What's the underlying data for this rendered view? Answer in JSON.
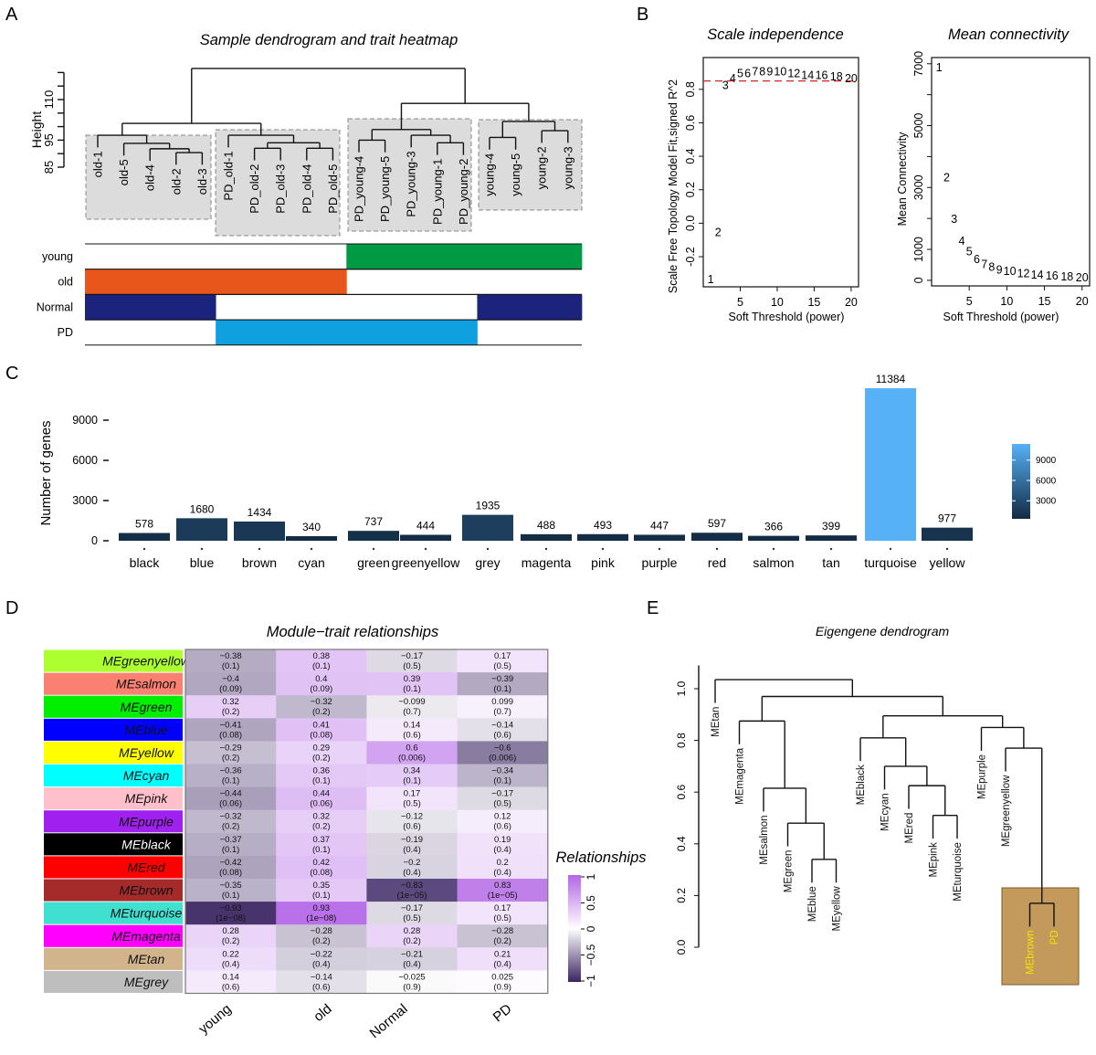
{
  "panel_letters": [
    "A",
    "B",
    "C",
    "D",
    "E"
  ],
  "panel_a": {
    "title": "Sample dendrogram and trait heatmap",
    "ylabel": "Height",
    "yticks": [
      85,
      90,
      95,
      100,
      105,
      110,
      115,
      120
    ],
    "ytick_labels": [
      "85",
      "",
      "95",
      "",
      "",
      "110",
      "",
      ""
    ],
    "tree": {
      "h": 121.5,
      "c": [
        {
          "h": 101.2,
          "c": [
            {
              "h": 96.8,
              "c": [
                "old-1",
                {
                  "h": 93.8,
                  "c": [
                    "old-5",
                    {
                      "h": 91.8,
                      "c": [
                        "old-4",
                        {
                          "h": 90.4,
                          "c": [
                            "old-2",
                            "old-3"
                          ]
                        }
                      ]
                    }
                  ]
                }
              ]
            },
            {
              "h": 96.8,
              "c": [
                "PD_old-1",
                {
                  "h": 94,
                  "c": [
                    {
                      "h": 92,
                      "c": [
                        "PD_old-2",
                        "PD_old-3"
                      ]
                    },
                    {
                      "h": 92,
                      "c": [
                        "PD_old-4",
                        "PD_old-5"
                      ]
                    }
                  ]
                }
              ]
            }
          ]
        },
        {
          "h": 108.6,
          "c": [
            {
              "h": 98.9,
              "c": [
                {
                  "h": 95,
                  "c": [
                    "PD_young-4",
                    "PD_young-5"
                  ]
                },
                {
                  "h": 96.8,
                  "c": [
                    "PD_young-3",
                    {
                      "h": 94,
                      "c": [
                        "PD_young-1",
                        "PD_young-2"
                      ]
                    }
                  ]
                }
              ]
            },
            {
              "h": 101.9,
              "c": [
                {
                  "h": 96,
                  "c": [
                    "young-4",
                    "young-5"
                  ]
                },
                {
                  "h": 98.5,
                  "c": [
                    "young-2",
                    "young-3"
                  ]
                }
              ]
            }
          ]
        }
      ]
    },
    "traits": [
      {
        "label": "young",
        "color": "#009a44",
        "samples": [
          0,
          0,
          0,
          0,
          0,
          0,
          0,
          0,
          0,
          0,
          1,
          1,
          1,
          1,
          1,
          1,
          1,
          1,
          1
        ]
      },
      {
        "label": "old",
        "color": "#e8561c",
        "samples": [
          1,
          1,
          1,
          1,
          1,
          1,
          1,
          1,
          1,
          1,
          0,
          0,
          0,
          0,
          0,
          0,
          0,
          0,
          0
        ]
      },
      {
        "label": "Normal",
        "color": "#1c237c",
        "samples": [
          1,
          1,
          1,
          1,
          1,
          0,
          0,
          0,
          0,
          0,
          0,
          0,
          0,
          0,
          0,
          1,
          1,
          1,
          1
        ]
      },
      {
        "label": "PD",
        "color": "#0fa0e0",
        "samples": [
          0,
          0,
          0,
          0,
          0,
          1,
          1,
          1,
          1,
          1,
          1,
          1,
          1,
          1,
          1,
          0,
          0,
          0,
          0
        ]
      }
    ]
  },
  "chart_data": [
    {
      "type": "scatter",
      "panel": "B-left",
      "title": "Scale independence",
      "xlabel": "Soft Threshold (power)",
      "ylabel": "Scale Free Topology Model Fit,signed R^2",
      "x": [
        1,
        2,
        3,
        4,
        5,
        6,
        7,
        8,
        9,
        10,
        12,
        14,
        16,
        18,
        20
      ],
      "y": [
        -0.33,
        -0.05,
        0.83,
        0.87,
        0.9,
        0.9,
        0.91,
        0.91,
        0.91,
        0.91,
        0.9,
        0.89,
        0.89,
        0.88,
        0.87
      ],
      "xticks": [
        5,
        10,
        15,
        20
      ],
      "yticks": [
        -0.2,
        0.0,
        0.2,
        0.4,
        0.6,
        0.8
      ],
      "ytick_labels": [
        "-0.2",
        "0.0",
        "0.2",
        "0.4",
        "0.6",
        "0.8"
      ],
      "xlim": [
        0,
        21
      ],
      "ylim": [
        -0.38,
        0.99
      ],
      "hline": 0.85,
      "hline_color": "#d62728"
    },
    {
      "type": "scatter",
      "panel": "B-right",
      "title": "Mean connectivity",
      "xlabel": "Soft Threshold (power)",
      "ylabel": "Mean Connectivity",
      "x": [
        1,
        2,
        3,
        4,
        5,
        6,
        7,
        8,
        9,
        10,
        12,
        14,
        16,
        18,
        20
      ],
      "y": [
        6900,
        3350,
        2000,
        1300,
        950,
        700,
        550,
        450,
        370,
        320,
        250,
        200,
        170,
        140,
        120
      ],
      "xticks": [
        5,
        10,
        15,
        20
      ],
      "yticks": [
        0,
        1000,
        2000,
        3000,
        4000,
        5000,
        6000,
        7000
      ],
      "ytick_labels": [
        "0",
        "1000",
        "",
        "3000",
        "",
        "5000",
        "",
        "7000"
      ],
      "xlim": [
        0,
        21
      ],
      "ylim": [
        -180,
        7200
      ]
    },
    {
      "type": "bar",
      "panel": "C",
      "ylabel": "Number of genes",
      "categories": [
        "black",
        "blue",
        "brown",
        "cyan",
        "green",
        "greenyellow",
        "grey",
        "magenta",
        "pink",
        "purple",
        "red",
        "salmon",
        "tan",
        "turquoise",
        "yellow"
      ],
      "values": [
        578,
        1680,
        1434,
        340,
        737,
        444,
        1935,
        488,
        493,
        447,
        597,
        366,
        399,
        11384,
        977
      ],
      "yticks": [
        0,
        3000,
        6000,
        9000
      ],
      "ylim": [
        0,
        11384
      ],
      "color_low": "#132b43",
      "color_high": "#56b1f7",
      "colorbar_ticks": [
        3000,
        6000,
        9000
      ]
    },
    {
      "type": "heatmap",
      "panel": "D",
      "title": "Module−trait relationships",
      "legend_title": "Relationships",
      "legend_ticks": [
        "1",
        "0.5",
        "0",
        "−0.5",
        "−1"
      ],
      "columns": [
        "young",
        "old",
        "Normal",
        "PD"
      ],
      "rows": [
        {
          "label": "MEgreenyellow",
          "color": "#adff2f",
          "r": [
            -0.38,
            0.38,
            -0.17,
            0.17
          ],
          "p": [
            "0.1",
            "0.1",
            "0.5",
            "0.5"
          ]
        },
        {
          "label": "MEsalmon",
          "color": "#fa8072",
          "r": [
            -0.4,
            0.4,
            0.39,
            -0.39
          ],
          "p": [
            "0.09",
            "0.09",
            "0.1",
            "0.1"
          ]
        },
        {
          "label": "MEgreen",
          "color": "#00ee00",
          "r": [
            0.32,
            -0.32,
            -0.099,
            0.099
          ],
          "p": [
            "0.2",
            "0.2",
            "0.7",
            "0.7"
          ]
        },
        {
          "label": "MEblue",
          "color": "#0000ff",
          "r": [
            -0.41,
            0.41,
            0.14,
            -0.14
          ],
          "p": [
            "0.08",
            "0.08",
            "0.6",
            "0.6"
          ]
        },
        {
          "label": "MEyellow",
          "color": "#ffff00",
          "r": [
            -0.29,
            0.29,
            0.6,
            -0.6
          ],
          "p": [
            "0.2",
            "0.2",
            "0.006",
            "0.006"
          ]
        },
        {
          "label": "MEcyan",
          "color": "#00ffff",
          "r": [
            -0.36,
            0.36,
            0.34,
            -0.34
          ],
          "p": [
            "0.1",
            "0.1",
            "0.1",
            "0.1"
          ]
        },
        {
          "label": "MEpink",
          "color": "#ffc0cb",
          "r": [
            -0.44,
            0.44,
            0.17,
            -0.17
          ],
          "p": [
            "0.06",
            "0.06",
            "0.5",
            "0.5"
          ]
        },
        {
          "label": "MEpurple",
          "color": "#a020f0",
          "r": [
            -0.32,
            0.32,
            -0.12,
            0.12
          ],
          "p": [
            "0.2",
            "0.2",
            "0.6",
            "0.6"
          ]
        },
        {
          "label": "MEblack",
          "color": "#000000",
          "r": [
            -0.37,
            0.37,
            -0.19,
            0.19
          ],
          "p": [
            "0.1",
            "0.1",
            "0.4",
            "0.4"
          ]
        },
        {
          "label": "MEred",
          "color": "#ff0000",
          "r": [
            -0.42,
            0.42,
            -0.2,
            0.2
          ],
          "p": [
            "0.08",
            "0.08",
            "0.4",
            "0.4"
          ]
        },
        {
          "label": "MEbrown",
          "color": "#a52a2a",
          "r": [
            -0.35,
            0.35,
            -0.83,
            0.83
          ],
          "p": [
            "0.1",
            "0.1",
            "1e−05",
            "1e−05"
          ]
        },
        {
          "label": "MEturquoise",
          "color": "#40e0d0",
          "r": [
            -0.93,
            0.93,
            -0.17,
            0.17
          ],
          "p": [
            "1e−08",
            "1e−08",
            "0.5",
            "0.5"
          ]
        },
        {
          "label": "MEmagenta",
          "color": "#ff00ff",
          "r": [
            0.28,
            -0.28,
            0.28,
            -0.28
          ],
          "p": [
            "0.2",
            "0.2",
            "0.2",
            "0.2"
          ]
        },
        {
          "label": "MEtan",
          "color": "#d2b48c",
          "r": [
            0.22,
            -0.22,
            -0.21,
            0.21
          ],
          "p": [
            "0.4",
            "0.4",
            "0.4",
            "0.4"
          ]
        },
        {
          "label": "MEgrey",
          "color": "#bebebe",
          "r": [
            0.14,
            -0.14,
            -0.025,
            0.025
          ],
          "p": [
            "0.6",
            "0.6",
            "0.9",
            "0.9"
          ]
        }
      ],
      "color_neg": "#3b2462",
      "color_mid": "#ffffff",
      "color_pos": "#b366e6",
      "zlim": [
        -1,
        1
      ]
    }
  ],
  "panel_e": {
    "title": "Eigengene dendrogram",
    "yticks": [
      "0.0",
      "0.2",
      "0.4",
      "0.6",
      "0.8",
      "1.0"
    ],
    "highlight_color": "#c49a5c",
    "highlight_text_color": "#f5e400",
    "highlight_leaves": [
      "MEbrown",
      "PD"
    ],
    "tree": {
      "h": 1.035,
      "c": [
        "MEtan",
        {
          "h": 0.97,
          "c": [
            {
              "h": 0.875,
              "c": [
                "MEmagenta",
                {
                  "h": 0.615,
                  "c": [
                    "MEsalmon",
                    {
                      "h": 0.48,
                      "c": [
                        "MEgreen",
                        {
                          "h": 0.34,
                          "c": [
                            "MEblue",
                            "MEyellow"
                          ]
                        }
                      ]
                    }
                  ]
                }
              ]
            },
            {
              "h": 0.895,
              "c": [
                {
                  "h": 0.81,
                  "c": [
                    "MEblack",
                    {
                      "h": 0.7,
                      "c": [
                        "MEcyan",
                        {
                          "h": 0.625,
                          "c": [
                            "MEred",
                            {
                              "h": 0.51,
                              "c": [
                                "MEpink",
                                "MEturquoise"
                              ]
                            }
                          ]
                        }
                      ]
                    }
                  ]
                },
                {
                  "h": 0.85,
                  "c": [
                    "MEpurple",
                    {
                      "h": 0.77,
                      "c": [
                        "MEgreenyellow",
                        {
                          "h": 0.17,
                          "c": [
                            "MEbrown",
                            "PD"
                          ]
                        }
                      ]
                    }
                  ]
                }
              ]
            }
          ]
        }
      ]
    }
  }
}
